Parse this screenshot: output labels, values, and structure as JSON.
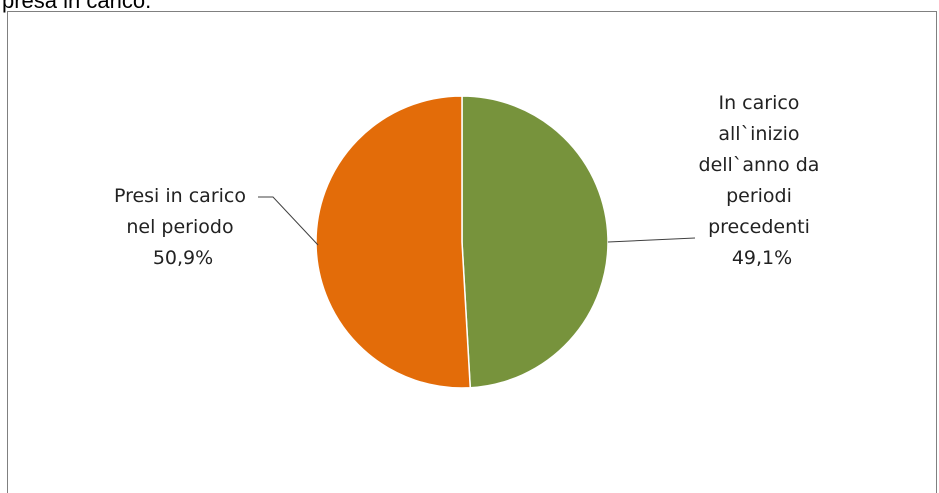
{
  "caption": "presa in carico.",
  "chart_data": {
    "type": "pie",
    "title": "",
    "slices": [
      {
        "label_lines": [
          "In carico",
          "all`inizio",
          "dell`anno da",
          "periodi",
          "precedenti"
        ],
        "value_label": "49,1%",
        "value": 49.1,
        "color": "#77933C"
      },
      {
        "label_lines": [
          "Presi in carico",
          "nel periodo"
        ],
        "value_label": "50,9%",
        "value": 50.9,
        "color": "#E36C09"
      }
    ],
    "legend": "none",
    "start": "12 o'clock",
    "direction": "clockwise"
  }
}
